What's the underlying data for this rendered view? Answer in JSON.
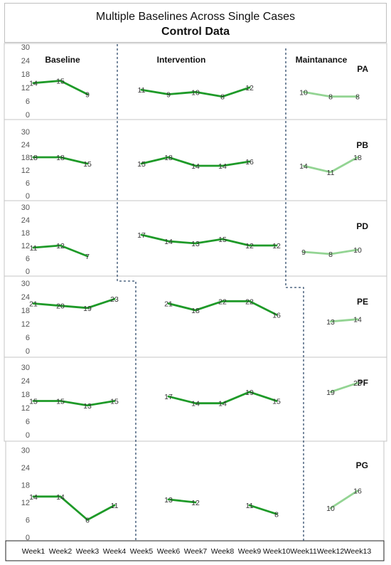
{
  "chart_data": {
    "type": "line",
    "title": "Multiple Baselines Across Single Cases",
    "subtitle": "Control Data",
    "categories": [
      "Week1",
      "Week2",
      "Week3",
      "Week4",
      "Week5",
      "Week6",
      "Week7",
      "Week8",
      "Week9",
      "Week10",
      "Week11",
      "Week12",
      "Week13"
    ],
    "phases": [
      "Baseline",
      "Intervention",
      "Maintanance"
    ],
    "y_ticks": [
      0,
      6,
      12,
      18,
      24,
      30
    ],
    "ylim": [
      0,
      30
    ],
    "colors": {
      "main": "#1e9a28",
      "maintenance": "#93d493",
      "divider": "#2f4a6b"
    },
    "cases": [
      {
        "name": "PA",
        "series": [
          {
            "phase": "Baseline",
            "weeks": [
              1,
              2,
              3
            ],
            "values": [
              14,
              15,
              9
            ]
          },
          {
            "phase": "Intervention",
            "weeks": [
              5,
              6,
              7,
              8,
              9
            ],
            "values": [
              11,
              9,
              10,
              8,
              12
            ]
          },
          {
            "phase": "Maintanance",
            "weeks": [
              11,
              12,
              13
            ],
            "values": [
              10,
              8,
              8
            ]
          }
        ]
      },
      {
        "name": "PB",
        "series": [
          {
            "phase": "Baseline",
            "weeks": [
              1,
              2,
              3
            ],
            "values": [
              18,
              18,
              15
            ]
          },
          {
            "phase": "Intervention",
            "weeks": [
              5,
              6,
              7,
              8,
              9
            ],
            "values": [
              15,
              18,
              14,
              14,
              16
            ]
          },
          {
            "phase": "Maintanance",
            "weeks": [
              11,
              12,
              13
            ],
            "values": [
              14,
              11,
              18
            ]
          }
        ]
      },
      {
        "name": "PD",
        "series": [
          {
            "phase": "Baseline",
            "weeks": [
              1,
              2,
              3
            ],
            "values": [
              11,
              12,
              7
            ]
          },
          {
            "phase": "Intervention",
            "weeks": [
              5,
              6,
              7,
              8,
              9,
              10
            ],
            "values": [
              17,
              14,
              13,
              15,
              12,
              12
            ]
          },
          {
            "phase": "Maintanance",
            "weeks": [
              11,
              12,
              13
            ],
            "values": [
              9,
              8,
              10
            ]
          }
        ]
      },
      {
        "name": "PE",
        "series": [
          {
            "phase": "Baseline",
            "weeks": [
              1,
              2,
              3,
              4
            ],
            "values": [
              21,
              20,
              19,
              23
            ]
          },
          {
            "phase": "Intervention",
            "weeks": [
              6,
              7,
              8,
              9,
              10
            ],
            "values": [
              21,
              18,
              22,
              22,
              16
            ]
          },
          {
            "phase": "Maintanance",
            "weeks": [
              12,
              13
            ],
            "values": [
              13,
              14
            ]
          }
        ]
      },
      {
        "name": "PF",
        "series": [
          {
            "phase": "Baseline",
            "weeks": [
              1,
              2,
              3,
              4
            ],
            "values": [
              15,
              15,
              13,
              15
            ]
          },
          {
            "phase": "Intervention",
            "weeks": [
              6,
              7,
              8,
              9,
              10
            ],
            "values": [
              17,
              14,
              14,
              19,
              15
            ]
          },
          {
            "phase": "Maintanance",
            "weeks": [
              12,
              13
            ],
            "values": [
              19,
              23
            ]
          }
        ]
      },
      {
        "name": "PG",
        "series": [
          {
            "phase": "Baseline",
            "weeks": [
              1,
              2,
              3,
              4
            ],
            "values": [
              14,
              14,
              6,
              11
            ]
          },
          {
            "phase": "Intervention",
            "weeks": [
              6,
              7
            ],
            "values": [
              13,
              12
            ]
          },
          {
            "phase": "Intervention",
            "weeks": [
              9,
              10
            ],
            "values": [
              11,
              8
            ]
          },
          {
            "phase": "Maintanance",
            "weeks": [
              12,
              13
            ],
            "values": [
              10,
              16
            ]
          }
        ]
      }
    ]
  }
}
